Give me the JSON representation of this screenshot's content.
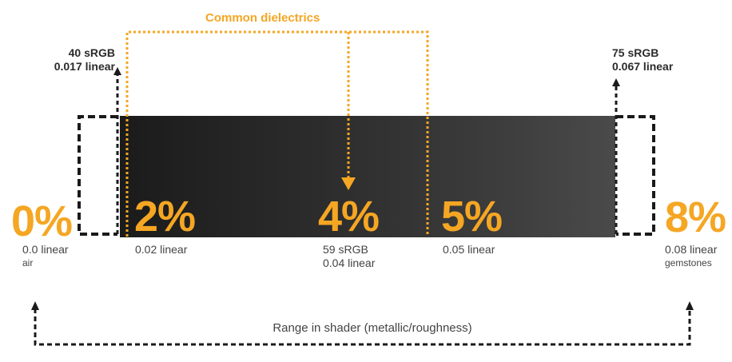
{
  "top_label": "Common dielectrics",
  "left_marker": {
    "srgb": "40 sRGB",
    "linear": "0.017 linear"
  },
  "right_marker": {
    "srgb": "75 sRGB",
    "linear": "0.067 linear"
  },
  "stops": [
    {
      "percent": "0%",
      "line1": "0.0 linear",
      "line2": "air"
    },
    {
      "percent": "2%",
      "line1": "0.02 linear"
    },
    {
      "percent": "4%",
      "line1": "59 sRGB",
      "line2": "0.04 linear"
    },
    {
      "percent": "5%",
      "line1": "0.05 linear"
    },
    {
      "percent": "8%",
      "line1": "0.08 linear",
      "line2": "gemstones"
    }
  ],
  "bottom_label": "Range in shader (metallic/roughness)",
  "colors": {
    "accent": "#f5a623",
    "dark": "#1f1f1f",
    "dash": "#1a1a1a"
  }
}
